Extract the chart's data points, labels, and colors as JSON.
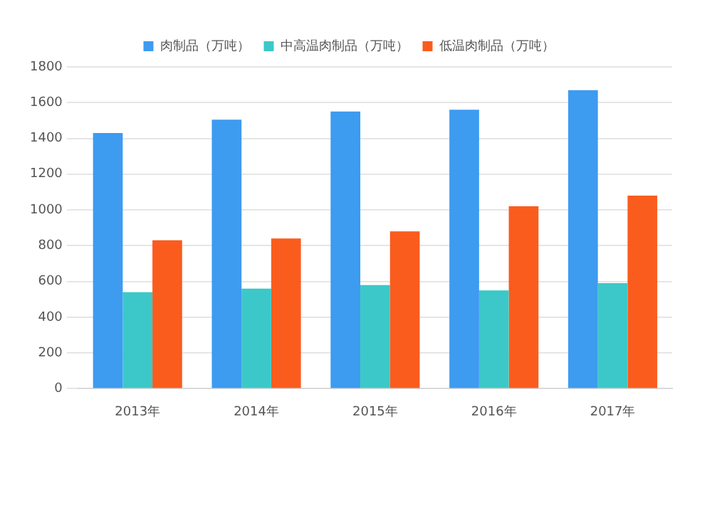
{
  "chart_data": {
    "type": "bar",
    "categories": [
      "2013年",
      "2014年",
      "2015年",
      "2016年",
      "2017年"
    ],
    "series": [
      {
        "name": "肉制品（万吨）",
        "color": "#3d9bf0",
        "values": [
          1430,
          1505,
          1550,
          1560,
          1670
        ]
      },
      {
        "name": "中高温肉制品（万吨）",
        "color": "#3cc8c8",
        "values": [
          540,
          560,
          580,
          550,
          590
        ]
      },
      {
        "name": "低温肉制品（万吨）",
        "color": "#fa5c1e",
        "values": [
          830,
          840,
          880,
          1020,
          1080
        ]
      }
    ],
    "ylim": [
      0,
      1800
    ],
    "yticks": [
      0,
      200,
      400,
      600,
      800,
      1000,
      1200,
      1400,
      1600,
      1800
    ],
    "grid": "y",
    "legend": "top"
  }
}
